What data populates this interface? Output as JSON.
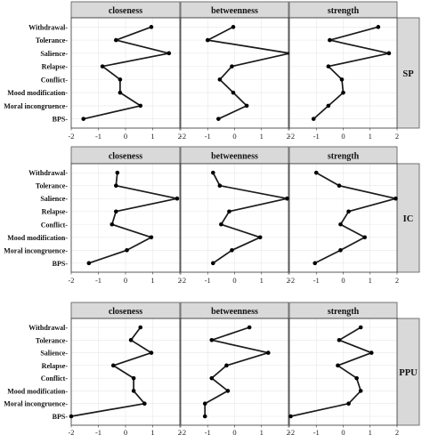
{
  "colors": {
    "strip_fill": "#d9d9d9",
    "strip_stroke": "#555555",
    "grid": "#e8e8e8",
    "line": "#1a1a1a",
    "point": "#000000"
  },
  "chart_data": {
    "type": "line",
    "facet_layout": "rows = group (SP, IC, PPU), columns = centrality measure",
    "grid": true,
    "variables": [
      "Withdrawal",
      "Tolerance",
      "Salience",
      "Relapse",
      "Conflict",
      "Mood modification",
      "Moral incongruence",
      "BPS"
    ],
    "x_ticks": [
      "-2",
      "-1",
      "0",
      "1",
      "2"
    ],
    "xlim": [
      -2,
      2
    ],
    "panels": [
      {
        "group": "SP",
        "series": [
          {
            "name": "closeness",
            "values": [
              0.95,
              -0.35,
              1.6,
              -0.85,
              -0.2,
              -0.2,
              0.55,
              -1.55
            ]
          },
          {
            "name": "betweenness",
            "values": [
              -0.05,
              -1.0,
              2.05,
              -0.1,
              -0.55,
              -0.05,
              0.45,
              -0.6
            ]
          },
          {
            "name": "strength",
            "values": [
              1.3,
              -0.5,
              1.7,
              -0.55,
              -0.05,
              0.0,
              -0.55,
              -1.1
            ]
          }
        ]
      },
      {
        "group": "IC",
        "series": [
          {
            "name": "closeness",
            "values": [
              -0.3,
              -0.35,
              1.9,
              -0.35,
              -0.5,
              0.95,
              0.05,
              -1.35
            ]
          },
          {
            "name": "betweenness",
            "values": [
              -0.8,
              -0.55,
              1.95,
              -0.2,
              -0.5,
              0.95,
              -0.1,
              -0.8
            ]
          },
          {
            "name": "strength",
            "values": [
              -1.0,
              -0.15,
              1.95,
              0.2,
              -0.1,
              0.8,
              -0.1,
              -1.05
            ]
          }
        ]
      },
      {
        "group": "PPU",
        "series": [
          {
            "name": "closeness",
            "values": [
              0.55,
              0.2,
              0.95,
              -0.45,
              0.3,
              0.3,
              0.7,
              -2.0
            ]
          },
          {
            "name": "betweenness",
            "values": [
              0.55,
              -0.85,
              1.25,
              -0.3,
              -0.85,
              -0.25,
              -1.1,
              -1.1
            ]
          },
          {
            "name": "strength",
            "values": [
              0.65,
              -0.15,
              1.05,
              -0.2,
              0.5,
              0.65,
              0.2,
              -1.95
            ]
          }
        ]
      }
    ]
  }
}
